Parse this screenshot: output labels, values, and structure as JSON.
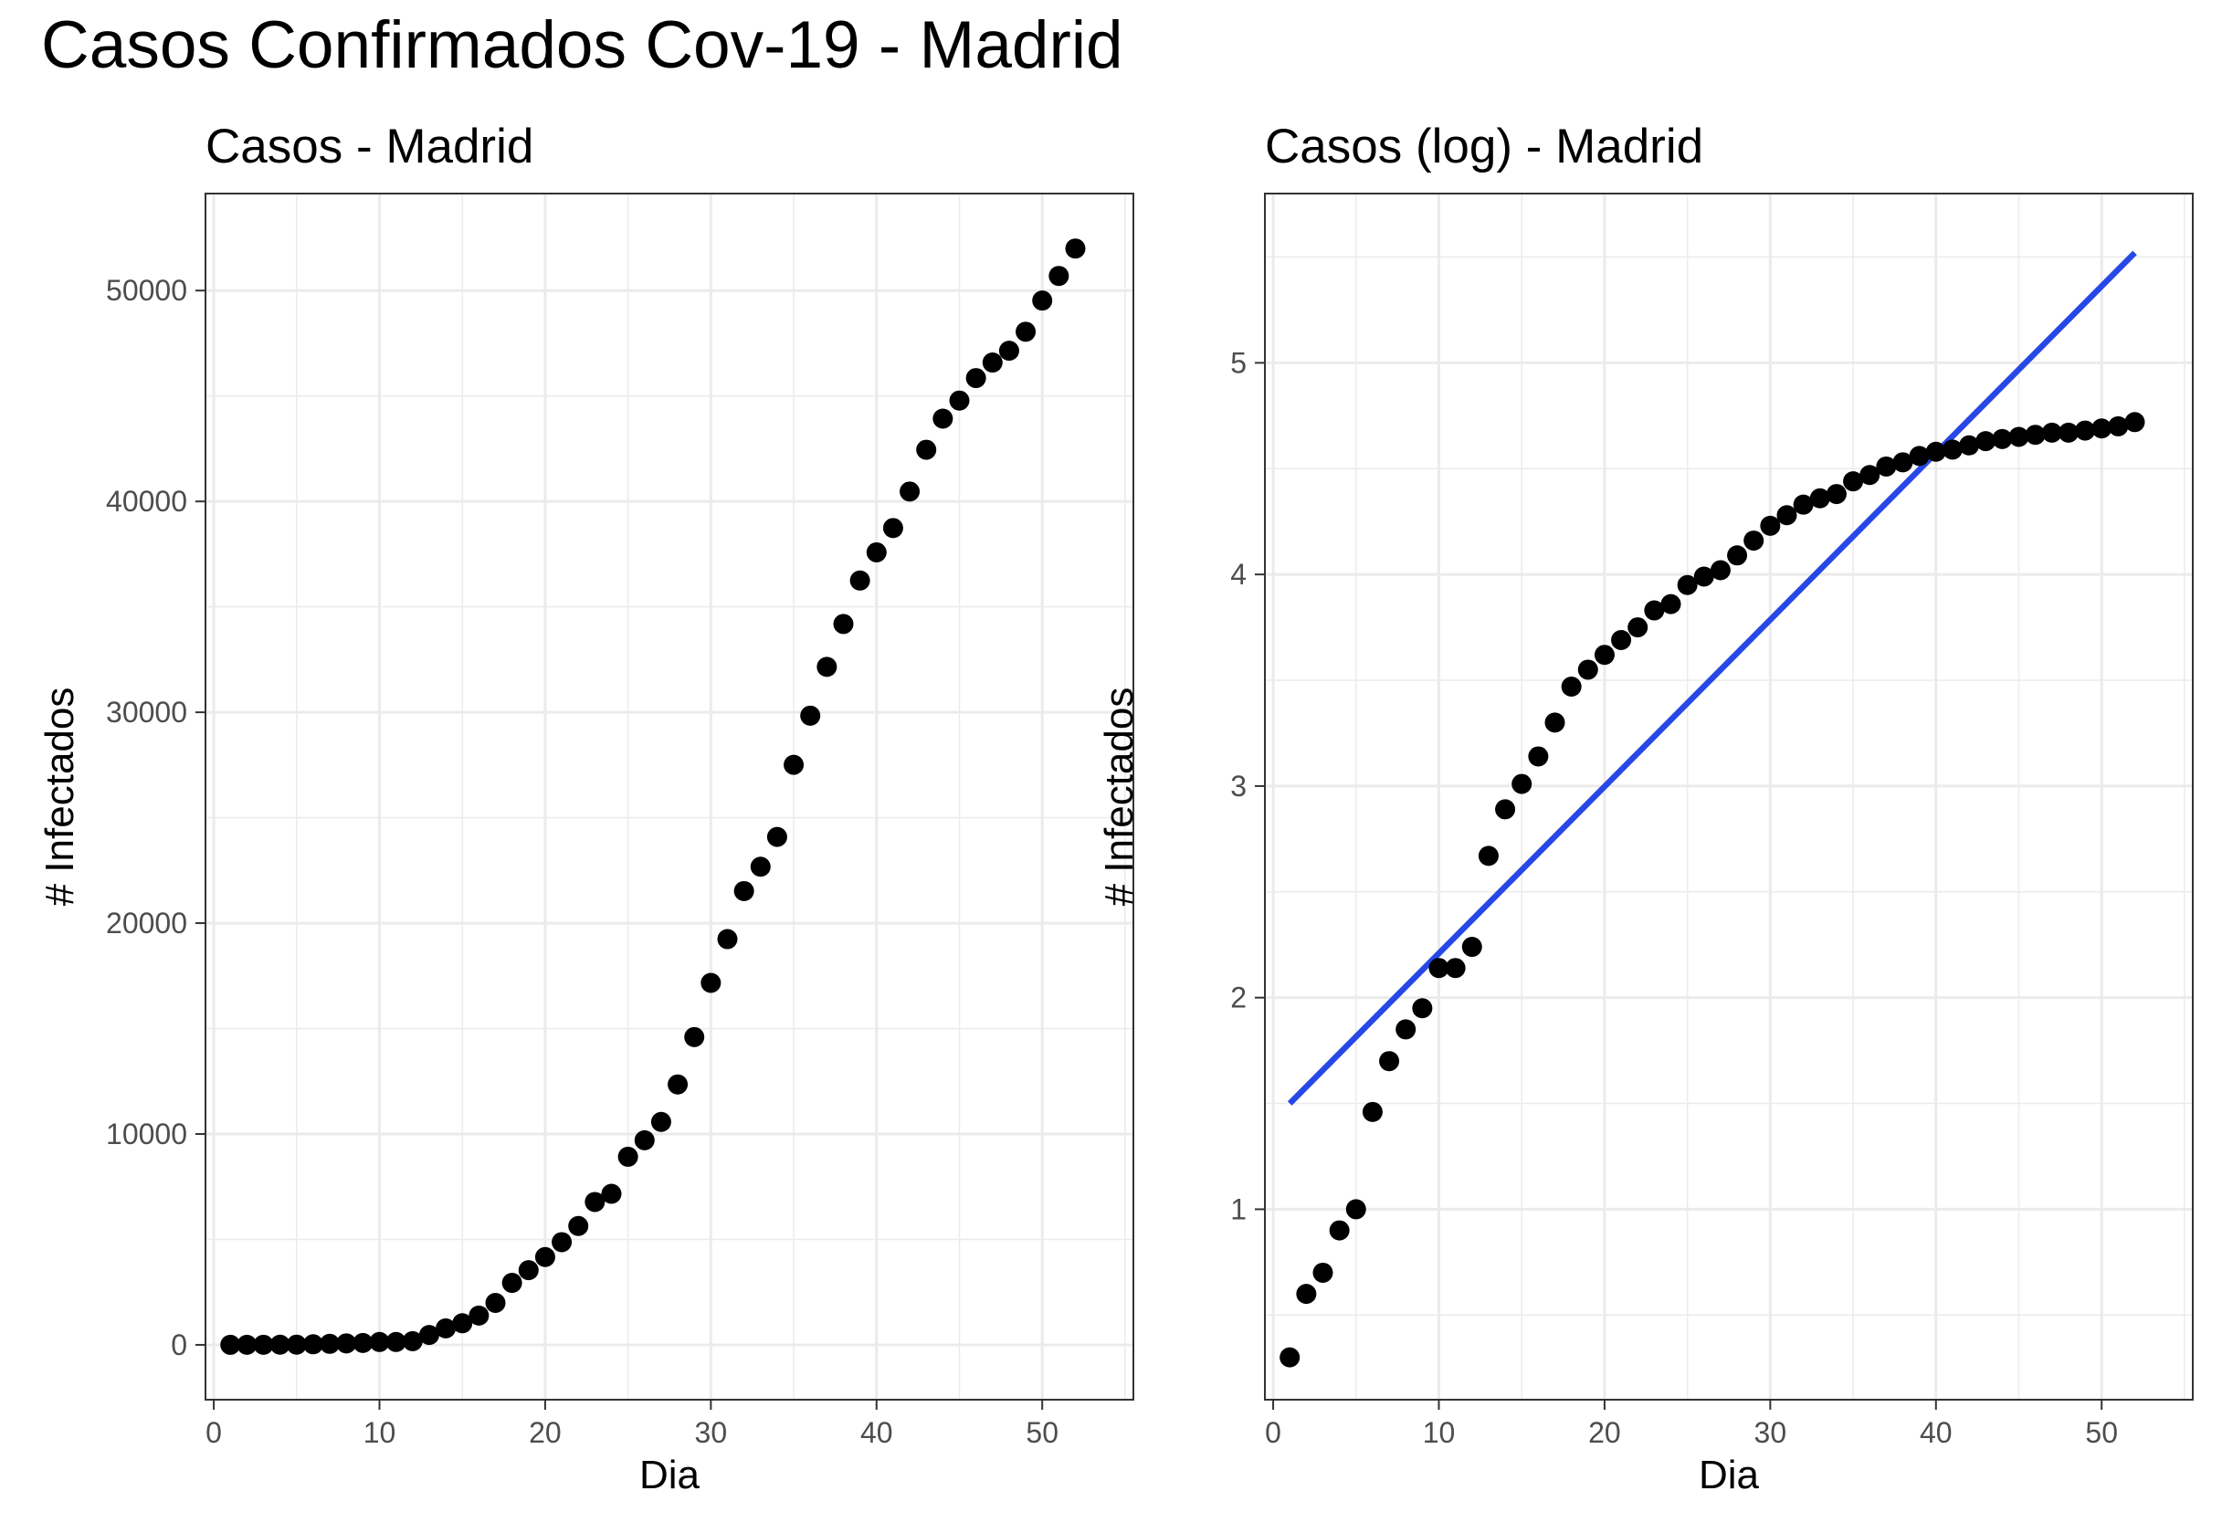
{
  "title": "Casos Confirmados Cov-19 - Madrid",
  "colors": {
    "points": "#000000",
    "fit_line": "#2748e6",
    "grid": "#ebebeb",
    "panel_border": "#333333"
  },
  "chart_data": [
    {
      "type": "scatter",
      "title": "Casos - Madrid",
      "xlabel": "Dia",
      "ylabel": "# Infectados",
      "xlim": [
        -0.5,
        55.5
      ],
      "ylim": [
        -2600,
        54600
      ],
      "xticks": [
        0,
        10,
        20,
        30,
        40,
        50
      ],
      "yticks": [
        0,
        10000,
        20000,
        30000,
        40000,
        50000
      ],
      "grid": true,
      "x": [
        1,
        2,
        3,
        4,
        5,
        6,
        7,
        8,
        9,
        10,
        11,
        12,
        13,
        14,
        15,
        16,
        17,
        18,
        19,
        20,
        21,
        22,
        23,
        24,
        25,
        26,
        27,
        28,
        29,
        30,
        31,
        32,
        33,
        34,
        35,
        36,
        37,
        38,
        39,
        40,
        41,
        42,
        43,
        44,
        45,
        46,
        47,
        48,
        49,
        50,
        51,
        52
      ],
      "y": [
        2,
        4,
        5,
        8,
        10,
        29,
        50,
        70,
        90,
        137,
        137,
        174,
        469,
        782,
        1024,
        1388,
        1990,
        2940,
        3544,
        4165,
        4871,
        5637,
        6777,
        7165,
        8921,
        9702,
        10575,
        12352,
        14597,
        17166,
        19243,
        21520,
        22677,
        24090,
        27509,
        29840,
        32155,
        34188,
        36249,
        37584,
        38737,
        40469,
        42450,
        43927,
        44783,
        45849,
        46587,
        47146,
        48048,
        49526,
        50694,
        51993
      ]
    },
    {
      "type": "scatter",
      "title": "Casos (log) - Madrid",
      "xlabel": "Dia",
      "ylabel": "# Infectados",
      "xlim": [
        -0.5,
        55.5
      ],
      "ylim": [
        0.1,
        5.8
      ],
      "xticks": [
        0,
        10,
        20,
        30,
        40,
        50
      ],
      "yticks": [
        1,
        2,
        3,
        4,
        5
      ],
      "grid": true,
      "x": [
        1,
        2,
        3,
        4,
        5,
        6,
        7,
        8,
        9,
        10,
        11,
        12,
        13,
        14,
        15,
        16,
        17,
        18,
        19,
        20,
        21,
        22,
        23,
        24,
        25,
        26,
        27,
        28,
        29,
        30,
        31,
        32,
        33,
        34,
        35,
        36,
        37,
        38,
        39,
        40,
        41,
        42,
        43,
        44,
        45,
        46,
        47,
        48,
        49,
        50,
        51,
        52
      ],
      "y": [
        0.3,
        0.6,
        0.7,
        0.9,
        1.0,
        1.46,
        1.7,
        1.85,
        1.95,
        2.14,
        2.14,
        2.24,
        2.67,
        2.89,
        3.01,
        3.14,
        3.3,
        3.47,
        3.55,
        3.62,
        3.69,
        3.75,
        3.83,
        3.86,
        3.95,
        3.99,
        4.02,
        4.09,
        4.16,
        4.23,
        4.28,
        4.33,
        4.36,
        4.38,
        4.44,
        4.47,
        4.51,
        4.53,
        4.56,
        4.58,
        4.59,
        4.61,
        4.63,
        4.64,
        4.65,
        4.66,
        4.67,
        4.67,
        4.68,
        4.69,
        4.7,
        4.72
      ],
      "fit_line": {
        "x": [
          1,
          52
        ],
        "y": [
          1.5,
          5.52
        ]
      }
    }
  ]
}
